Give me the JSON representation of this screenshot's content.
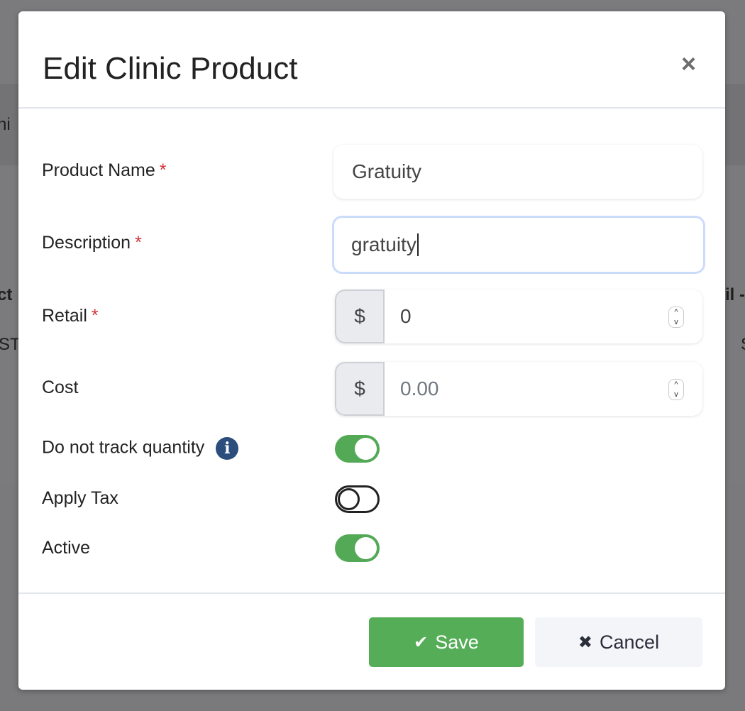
{
  "background": {
    "fragments": [
      "hi",
      "ct",
      "ST",
      "il -",
      "S"
    ]
  },
  "modal": {
    "title": "Edit Clinic Product",
    "close_icon": "×",
    "fields": {
      "product_name": {
        "label": "Product Name",
        "required": "*",
        "value": "Gratuity"
      },
      "description": {
        "label": "Description",
        "required": "*",
        "value": "gratuity"
      },
      "retail": {
        "label": "Retail",
        "required": "*",
        "prefix": "$",
        "value": "0"
      },
      "cost": {
        "label": "Cost",
        "prefix": "$",
        "placeholder": "0.00"
      }
    },
    "toggles": {
      "do_not_track": {
        "label": "Do not track quantity",
        "on": true,
        "info_icon": "i"
      },
      "apply_tax": {
        "label": "Apply Tax",
        "on": false
      },
      "active": {
        "label": "Active",
        "on": true
      }
    },
    "footer": {
      "save_label": "Save",
      "save_icon": "✔",
      "cancel_label": "Cancel",
      "cancel_icon": "✖"
    },
    "colors": {
      "accent_green": "#55ad57",
      "info_blue": "#2b4e7d",
      "required_red": "#d0343a"
    }
  }
}
